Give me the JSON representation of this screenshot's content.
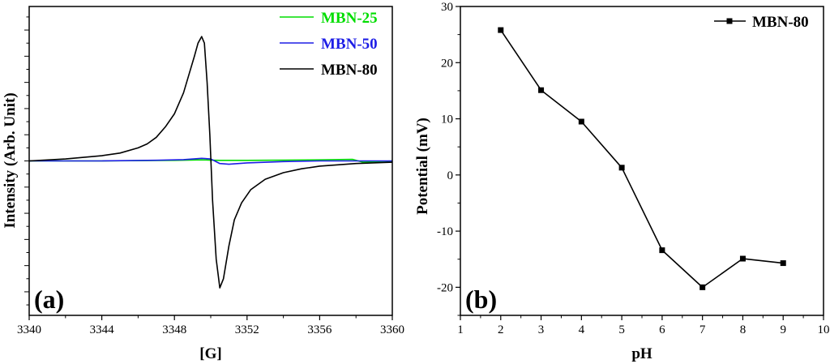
{
  "chart_data": [
    {
      "type": "line",
      "panel_label": "(a)",
      "xlabel": "[G]",
      "ylabel": "Intensity (Arb. Unit)",
      "xlim": [
        3340,
        3360
      ],
      "ylim": [
        -1.18,
        1.18
      ],
      "x_ticks": [
        "3340",
        "3344",
        "3348",
        "3352",
        "3356",
        "3360"
      ],
      "y_ticks_labeled": false,
      "legend_position": "top-right",
      "series": [
        {
          "name": "MBN-25",
          "color": "#00dd00",
          "x": [
            3340,
            3344,
            3348,
            3349.5,
            3350,
            3350.5,
            3352,
            3354,
            3356,
            3357.8,
            3358.4,
            3360
          ],
          "y": [
            0.0,
            0.0,
            0.004,
            0.008,
            0.006,
            0.004,
            0.004,
            0.006,
            0.008,
            0.012,
            -0.01,
            0.0
          ]
        },
        {
          "name": "MBN-50",
          "color": "#1e1ee6",
          "x": [
            3340,
            3344,
            3347,
            3348.5,
            3349.5,
            3350,
            3350.5,
            3351,
            3352,
            3354,
            3356,
            3358,
            3360
          ],
          "y": [
            0.0,
            0.0,
            0.005,
            0.01,
            0.02,
            0.015,
            -0.02,
            -0.025,
            -0.015,
            -0.005,
            0.0,
            0.0,
            0.0
          ]
        },
        {
          "name": "MBN-80",
          "color": "#000000",
          "x": [
            3340,
            3342,
            3344,
            3345,
            3346,
            3346.5,
            3347,
            3347.5,
            3348,
            3348.5,
            3348.8,
            3349.1,
            3349.3,
            3349.5,
            3349.65,
            3349.8,
            3349.95,
            3350.1,
            3350.3,
            3350.5,
            3350.7,
            3351.0,
            3351.3,
            3351.7,
            3352.2,
            3353,
            3354,
            3355,
            3356,
            3358,
            3360
          ],
          "y": [
            0.0,
            0.015,
            0.04,
            0.06,
            0.1,
            0.13,
            0.18,
            0.26,
            0.36,
            0.52,
            0.66,
            0.8,
            0.9,
            0.95,
            0.9,
            0.6,
            0.2,
            -0.3,
            -0.75,
            -0.97,
            -0.9,
            -0.65,
            -0.45,
            -0.32,
            -0.22,
            -0.14,
            -0.09,
            -0.06,
            -0.04,
            -0.02,
            -0.01
          ]
        }
      ]
    },
    {
      "type": "line",
      "panel_label": "(b)",
      "xlabel": "pH",
      "ylabel": "Potential (mV)",
      "xlim": [
        1,
        10
      ],
      "ylim": [
        -25,
        30
      ],
      "x_ticks": [
        "1",
        "2",
        "3",
        "4",
        "5",
        "6",
        "7",
        "8",
        "9",
        "10"
      ],
      "y_ticks": [
        "-20",
        "-10",
        "0",
        "10",
        "20",
        "30"
      ],
      "legend_position": "top-right",
      "series": [
        {
          "name": "MBN-80",
          "color": "#000000",
          "marker": "square",
          "x": [
            2,
            3,
            4,
            5,
            6,
            7,
            8,
            9
          ],
          "y": [
            25.8,
            15.1,
            9.5,
            1.3,
            -13.4,
            -20.0,
            -14.9,
            -15.7
          ]
        }
      ]
    }
  ]
}
